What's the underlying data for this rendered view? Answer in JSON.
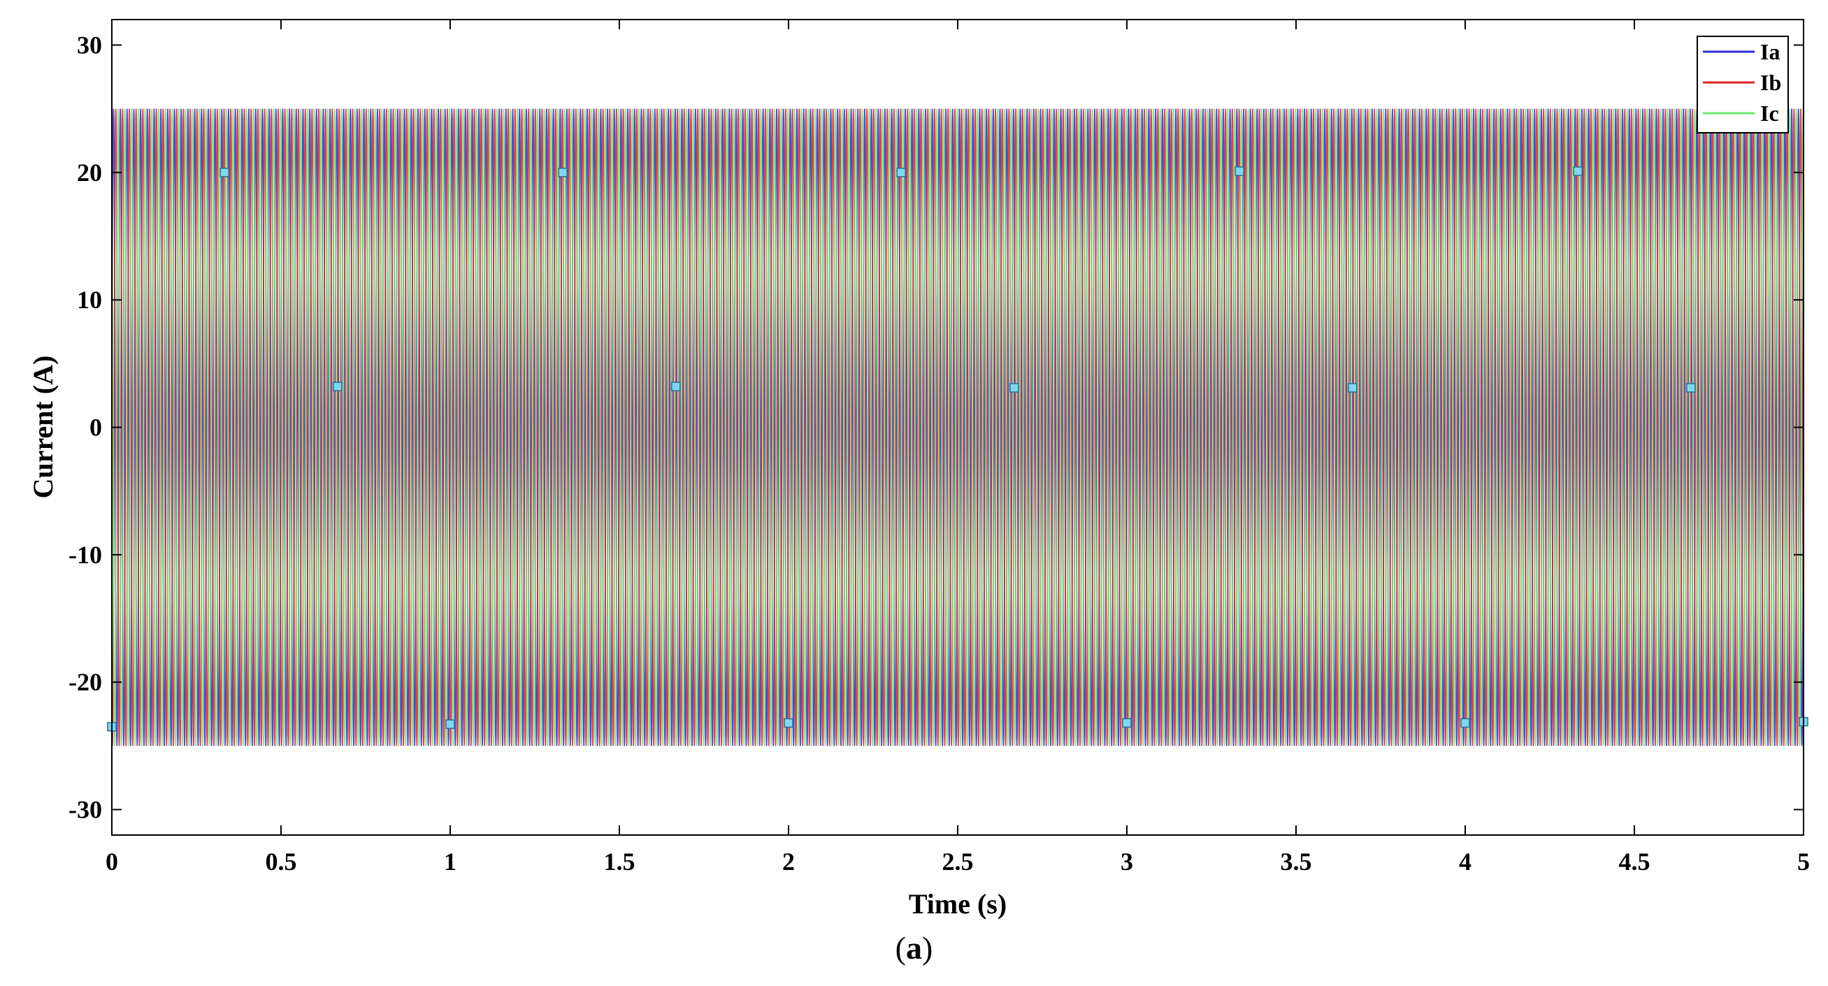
{
  "chart_data": {
    "type": "line",
    "xlabel": "Time (s)",
    "ylabel": "Current (A)",
    "xlim": [
      0,
      5
    ],
    "ylim": [
      -32,
      32
    ],
    "xticks": [
      0,
      0.5,
      1,
      1.5,
      2,
      2.5,
      3,
      3.5,
      4,
      4.5,
      5
    ],
    "xtick_labels": [
      "0",
      "0.5",
      "1",
      "1.5",
      "2",
      "2.5",
      "3",
      "3.5",
      "4",
      "4.5",
      "5"
    ],
    "yticks": [
      -30,
      -20,
      -10,
      0,
      10,
      20,
      30
    ],
    "ytick_labels": [
      "-30",
      "-20",
      "-10",
      "0",
      "10",
      "20",
      "30"
    ],
    "grid": false,
    "legend_position": "top-right",
    "series": [
      {
        "name": "Ia",
        "color": "#2b2bd6",
        "amplitude": 25,
        "phase_deg": 0,
        "frequency_hz": 50
      },
      {
        "name": "Ib",
        "color": "#e02020",
        "amplitude": 25,
        "phase_deg": -120,
        "frequency_hz": 50
      },
      {
        "name": "Ic",
        "color": "#6be86b",
        "amplitude": 25,
        "phase_deg": 120,
        "frequency_hz": 50
      }
    ],
    "markers": [
      {
        "x": 0.0,
        "y": -23.5
      },
      {
        "x": 0.333,
        "y": 20
      },
      {
        "x": 0.667,
        "y": 3.2
      },
      {
        "x": 1.0,
        "y": -23.3
      },
      {
        "x": 1.333,
        "y": 20
      },
      {
        "x": 1.667,
        "y": 3.2
      },
      {
        "x": 2.0,
        "y": -23.2
      },
      {
        "x": 2.333,
        "y": 20
      },
      {
        "x": 2.667,
        "y": 3.1
      },
      {
        "x": 3.0,
        "y": -23.2
      },
      {
        "x": 3.333,
        "y": 20.1
      },
      {
        "x": 3.667,
        "y": 3.1
      },
      {
        "x": 4.0,
        "y": -23.2
      },
      {
        "x": 4.333,
        "y": 20.1
      },
      {
        "x": 4.667,
        "y": 3.1
      },
      {
        "x": 5.0,
        "y": -23.1
      }
    ]
  },
  "caption": {
    "open": "(",
    "letter": "a",
    "close": ")"
  }
}
